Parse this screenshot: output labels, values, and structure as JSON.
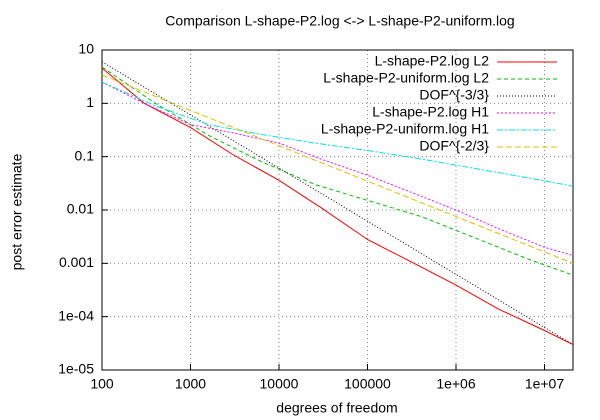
{
  "chart_data": {
    "type": "line",
    "title": "Comparison L-shape-P2.log <-> L-shape-P2-uniform.log",
    "x_label": "degrees of freedom",
    "y_label": "post error estimate",
    "log_x": true,
    "log_y": true,
    "grid": true,
    "legend": "top-right",
    "xlim": [
      100,
      21000000
    ],
    "ylim": [
      1e-05,
      10
    ],
    "xticks": [
      100,
      1000,
      10000,
      100000,
      {
        "value": 1000000,
        "label": "1e+06"
      },
      {
        "value": 10000000,
        "label": "1e+07"
      }
    ],
    "yticks": [
      {
        "value": 1e-05,
        "label": "1e-05"
      },
      {
        "value": 0.0001,
        "label": "1e-04"
      },
      0.001,
      0.01,
      0.1,
      1,
      10
    ],
    "series": [
      {
        "name": "L-shape-P2.log L2",
        "color": "#ff0000",
        "x": [
          100,
          300,
          1000,
          3000,
          10000,
          30000,
          100000,
          300000,
          1000000,
          3000000,
          10000000,
          21000000
        ],
        "values": [
          4.6,
          1.0,
          0.35,
          0.11,
          0.036,
          0.011,
          0.0028,
          0.0011,
          0.00039,
          0.00014,
          5.5e-05,
          3e-05
        ]
      },
      {
        "name": "L-shape-P2-uniform.log L2",
        "color": "#00c000",
        "x": [
          100,
          400,
          1600,
          6400,
          25600,
          102400,
          409600,
          1638400,
          6553600,
          21000000
        ],
        "values": [
          4.8,
          1.0,
          0.25,
          0.08,
          0.03,
          0.015,
          0.0075,
          0.003,
          0.0012,
          0.0006
        ]
      },
      {
        "name": "DOF^{-3/3}",
        "color": "#000000",
        "x": [
          100,
          21000000
        ],
        "values": [
          6,
          3e-05
        ]
      },
      {
        "name": "L-shape-P2.log H1",
        "color": "#ff00ff",
        "x": [
          100,
          300,
          1000,
          3000,
          10000,
          30000,
          100000,
          300000,
          1000000,
          3000000,
          10000000,
          21000000
        ],
        "values": [
          2.5,
          1.0,
          0.4,
          0.28,
          0.18,
          0.09,
          0.045,
          0.022,
          0.01,
          0.0045,
          0.002,
          0.0014
        ]
      },
      {
        "name": "L-shape-P2-uniform.log H1",
        "color": "#00e0e0",
        "x": [
          100,
          400,
          1600,
          6400,
          25600,
          102400,
          409600,
          1638400,
          6553600,
          21000000
        ],
        "values": [
          2.5,
          0.9,
          0.4,
          0.26,
          0.18,
          0.13,
          0.09,
          0.06,
          0.04,
          0.028
        ]
      },
      {
        "name": "DOF^{-2/3}",
        "color": "#e0c000",
        "x": [
          100,
          21000000
        ],
        "values": [
          3.4,
          0.001
        ]
      }
    ]
  }
}
